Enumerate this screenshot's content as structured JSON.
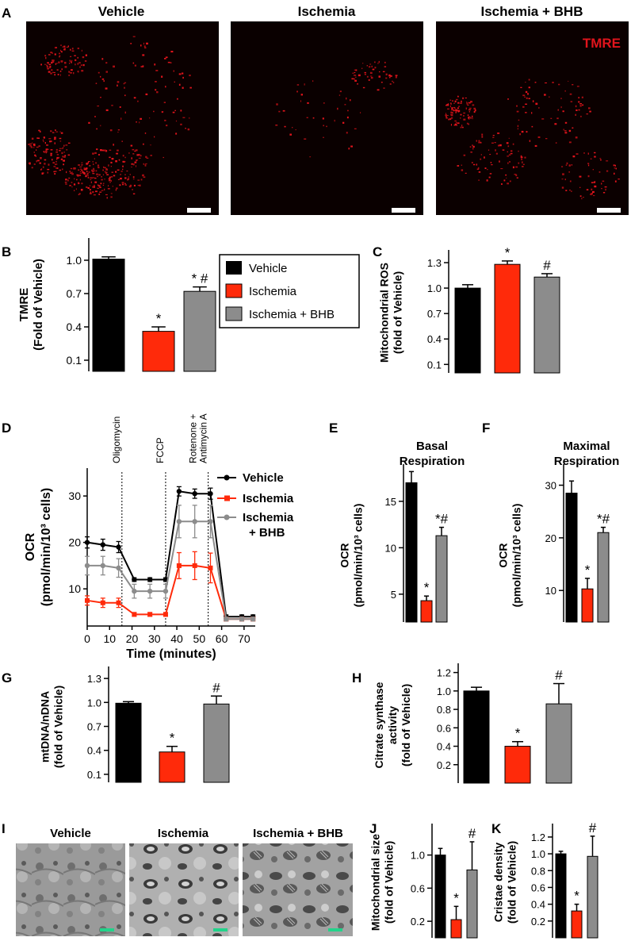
{
  "colors": {
    "vehicle": "#000000",
    "ischemia": "#ff2a0a",
    "bhb": "#8c8c8c",
    "tmre": "#e0141c",
    "scalebar_em": "#22d38a"
  },
  "panel_letters": [
    "A",
    "B",
    "C",
    "D",
    "E",
    "F",
    "G",
    "H",
    "I",
    "J",
    "K"
  ],
  "panelA": {
    "titles": [
      "Vehicle",
      "Ischemia",
      "Ischemia + BHB"
    ],
    "label": "TMRE"
  },
  "legendB": [
    "Vehicle",
    "Ischemia",
    "Ischemia + BHB"
  ],
  "legendD": [
    "Vehicle",
    "Ischemia",
    "Ischemia\n+ BHB"
  ],
  "panelI": {
    "titles": [
      "Vehicle",
      "Ischemia",
      "Ischemia + BHB"
    ]
  },
  "chart_data": [
    {
      "id": "B",
      "type": "bar",
      "ylabel": [
        "TMRE",
        "(Fold of Vehicle)"
      ],
      "categories": [
        "Vehicle",
        "Ischemia",
        "Ischemia + BHB"
      ],
      "values": [
        1.01,
        0.36,
        0.72
      ],
      "errors": [
        0.02,
        0.04,
        0.04
      ],
      "annotations": [
        "",
        "*",
        "* #"
      ],
      "ylim": [
        0,
        1.2
      ],
      "ticks": [
        0.1,
        0.4,
        0.7,
        1.0
      ],
      "tick_labels": [
        "0.1",
        "0.4",
        "0.7",
        "1.0"
      ]
    },
    {
      "id": "C",
      "type": "bar",
      "ylabel": [
        "Mitochondrial ROS",
        "(fold of Vehicle)"
      ],
      "categories": [
        "Vehicle",
        "Ischemia",
        "Ischemia + BHB"
      ],
      "values": [
        1.0,
        1.28,
        1.13
      ],
      "errors": [
        0.04,
        0.04,
        0.04
      ],
      "annotations": [
        "",
        "*",
        "#"
      ],
      "ylim": [
        0,
        1.45
      ],
      "ticks": [
        0.1,
        0.4,
        0.7,
        1.0,
        1.3
      ],
      "tick_labels": [
        "0.1",
        "0.4",
        "0.7",
        "1.0",
        "1.3"
      ]
    },
    {
      "id": "D",
      "type": "line",
      "xlabel": "Time (minutes)",
      "ylabel": [
        "OCR",
        "(pmol/min/10³ cells)"
      ],
      "x": [
        0,
        7,
        14,
        21,
        28,
        35,
        41,
        48,
        55,
        62,
        69,
        74
      ],
      "series": [
        {
          "name": "Vehicle",
          "values": [
            20,
            19.5,
            19,
            12,
            12,
            12,
            31,
            30.5,
            30.5,
            4,
            4,
            4
          ],
          "errors": [
            1.2,
            1.2,
            1.2,
            0.4,
            0.4,
            0.4,
            1.0,
            1.0,
            1.2,
            0.4,
            0.4,
            0.4
          ]
        },
        {
          "name": "Ischemia",
          "values": [
            7.5,
            7,
            7,
            4.5,
            4.5,
            4.5,
            15,
            15,
            14.5,
            3.5,
            3.5,
            3.5
          ],
          "errors": [
            1.0,
            1.0,
            1.0,
            0.4,
            0.4,
            0.4,
            2.8,
            3.0,
            3.2,
            0.4,
            0.4,
            0.4
          ]
        },
        {
          "name": "Ischemia + BHB",
          "values": [
            15,
            15,
            14.5,
            9.5,
            9.5,
            9.5,
            24.5,
            24.5,
            24.5,
            3.5,
            3.5,
            3.5
          ],
          "errors": [
            2,
            2,
            2,
            1.5,
            1.5,
            1.5,
            3.5,
            3.5,
            3.5,
            0.4,
            0.4,
            0.4
          ]
        }
      ],
      "xlim": [
        0,
        75
      ],
      "ylim": [
        2,
        36
      ],
      "xticks": [
        0,
        10,
        20,
        30,
        40,
        50,
        60,
        70
      ],
      "yticks": [
        10,
        20,
        30
      ],
      "markers": [
        {
          "x": 15.5,
          "label": "Oligomycin"
        },
        {
          "x": 35,
          "label": "FCCP"
        },
        {
          "x": 54,
          "label": "Rotenone +\nAntimycin A"
        }
      ]
    },
    {
      "id": "E",
      "type": "bar",
      "title": [
        "Basal",
        "Respiration"
      ],
      "ylabel": [
        "OCR",
        "(pmol/min/10³ cells)"
      ],
      "categories": [
        "Vehicle",
        "Ischemia",
        "Ischemia + BHB"
      ],
      "values": [
        17,
        4.3,
        11.3
      ],
      "errors": [
        1.2,
        0.5,
        0.9
      ],
      "annotations": [
        "",
        "*",
        "*#"
      ],
      "ylim": [
        2,
        19
      ],
      "ticks": [
        5,
        10,
        15
      ],
      "tick_labels": [
        "5",
        "10",
        "15"
      ]
    },
    {
      "id": "F",
      "type": "bar",
      "title": [
        "Maximal",
        "Respiration"
      ],
      "ylabel": [
        "OCR",
        "(pmol/min/10³ cells)"
      ],
      "categories": [
        "Vehicle",
        "Ischemia",
        "Ischemia + BHB"
      ],
      "values": [
        28.5,
        10.3,
        21
      ],
      "errors": [
        2.3,
        2.0,
        1.0
      ],
      "annotations": [
        "",
        "*",
        "*#"
      ],
      "ylim": [
        4,
        34
      ],
      "ticks": [
        10,
        20,
        30
      ],
      "tick_labels": [
        "10",
        "20",
        "30"
      ]
    },
    {
      "id": "G",
      "type": "bar",
      "ylabel": [
        "mtDNA/nDNA",
        "(fold of Vehicle)"
      ],
      "categories": [
        "Vehicle",
        "Ischemia",
        "Ischemia + BHB"
      ],
      "values": [
        0.99,
        0.38,
        0.98
      ],
      "errors": [
        0.02,
        0.07,
        0.1
      ],
      "annotations": [
        "",
        "*",
        "#"
      ],
      "ylim": [
        0,
        1.45
      ],
      "ticks": [
        0.1,
        0.4,
        0.7,
        1.0,
        1.3
      ],
      "tick_labels": [
        "0.1",
        "0.4",
        "0.7",
        "1.0",
        "1.3"
      ]
    },
    {
      "id": "H",
      "type": "bar",
      "ylabel": [
        "Citrate synthase",
        "activity",
        "(fold of Vehicle)"
      ],
      "categories": [
        "Vehicle",
        "Ischemia",
        "Ischemia + BHB"
      ],
      "values": [
        1.0,
        0.4,
        0.86
      ],
      "errors": [
        0.04,
        0.05,
        0.22
      ],
      "annotations": [
        "",
        "*",
        "#"
      ],
      "ylim": [
        0,
        1.3
      ],
      "ticks": [
        0.2,
        0.4,
        0.6,
        0.8,
        1.0,
        1.2
      ],
      "tick_labels": [
        "0.2",
        "0.4",
        "0.6",
        "0.8",
        "1.0",
        "1.2"
      ]
    },
    {
      "id": "J",
      "type": "bar",
      "ylabel": [
        "Mitochondrial size",
        "(fold of Vehicle)"
      ],
      "categories": [
        "Vehicle",
        "Ischemia",
        "Ischemia + BHB"
      ],
      "values": [
        1.0,
        0.22,
        0.82
      ],
      "errors": [
        0.08,
        0.16,
        0.34
      ],
      "annotations": [
        "",
        "*",
        "#"
      ],
      "ylim": [
        0,
        1.38
      ],
      "ticks": [
        0.2,
        0.6,
        1.0
      ],
      "tick_labels": [
        "0.2",
        "0.6",
        "1.0"
      ]
    },
    {
      "id": "K",
      "type": "bar",
      "ylabel": [
        "Cristae density",
        "(fold of Vehicle)"
      ],
      "categories": [
        "Vehicle",
        "Ischemia",
        "Ischemia + BHB"
      ],
      "values": [
        1.0,
        0.32,
        0.97
      ],
      "errors": [
        0.03,
        0.08,
        0.24
      ],
      "annotations": [
        "",
        "*",
        "#"
      ],
      "ylim": [
        0,
        1.36
      ],
      "ticks": [
        0.2,
        0.4,
        0.6,
        0.8,
        1.0,
        1.2
      ],
      "tick_labels": [
        "0.2",
        "0.4",
        "0.6",
        "0.8",
        "1.0",
        "1.2"
      ]
    }
  ]
}
